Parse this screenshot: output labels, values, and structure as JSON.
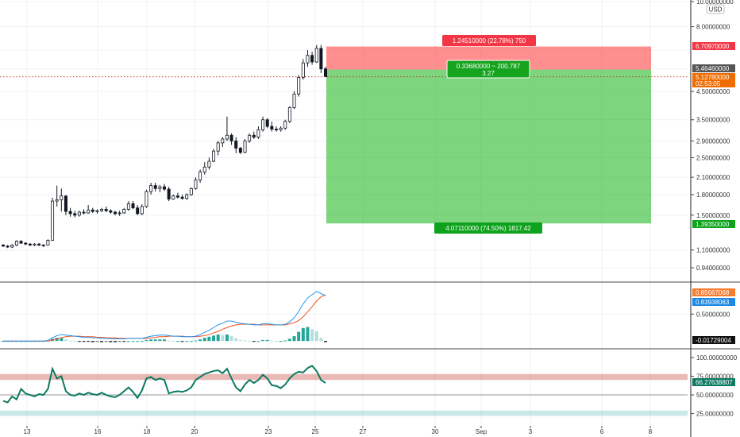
{
  "currency_label": "USD",
  "chart_data": {
    "type": "candlestick",
    "x_tick_labels": [
      "13",
      "16",
      "18",
      "20",
      "23",
      "25",
      "27",
      "30",
      "Sep",
      "3",
      "6",
      "8"
    ],
    "main": {
      "y_tick_labels": [
        "10.00000000",
        "8.00000000",
        "4.50000000",
        "3.50000000",
        "2.90000000",
        "2.50000000",
        "2.10000000",
        "1.80000000",
        "1.50000000",
        "1.10000000",
        "0.94000000"
      ],
      "candles": [
        [
          1.15,
          1.16,
          1.13,
          1.14
        ],
        [
          1.14,
          1.15,
          1.12,
          1.13
        ],
        [
          1.13,
          1.16,
          1.12,
          1.15
        ],
        [
          1.15,
          1.2,
          1.14,
          1.19
        ],
        [
          1.19,
          1.2,
          1.16,
          1.17
        ],
        [
          1.17,
          1.18,
          1.15,
          1.16
        ],
        [
          1.16,
          1.17,
          1.14,
          1.15
        ],
        [
          1.15,
          1.17,
          1.14,
          1.16
        ],
        [
          1.16,
          1.17,
          1.14,
          1.15
        ],
        [
          1.15,
          1.16,
          1.13,
          1.15
        ],
        [
          1.15,
          1.21,
          1.15,
          1.2
        ],
        [
          1.2,
          1.75,
          1.2,
          1.7
        ],
        [
          1.7,
          1.95,
          1.62,
          1.72
        ],
        [
          1.72,
          1.9,
          1.55,
          1.78
        ],
        [
          1.78,
          1.79,
          1.5,
          1.55
        ],
        [
          1.55,
          1.6,
          1.48,
          1.52
        ],
        [
          1.52,
          1.56,
          1.47,
          1.5
        ],
        [
          1.5,
          1.56,
          1.48,
          1.54
        ],
        [
          1.54,
          1.58,
          1.51,
          1.53
        ],
        [
          1.53,
          1.64,
          1.52,
          1.57
        ],
        [
          1.57,
          1.6,
          1.53,
          1.55
        ],
        [
          1.55,
          1.58,
          1.52,
          1.56
        ],
        [
          1.56,
          1.6,
          1.54,
          1.58
        ],
        [
          1.58,
          1.62,
          1.54,
          1.56
        ],
        [
          1.56,
          1.58,
          1.52,
          1.54
        ],
        [
          1.54,
          1.56,
          1.5,
          1.52
        ],
        [
          1.52,
          1.56,
          1.49,
          1.53
        ],
        [
          1.53,
          1.6,
          1.52,
          1.58
        ],
        [
          1.58,
          1.7,
          1.56,
          1.66
        ],
        [
          1.66,
          1.7,
          1.58,
          1.6
        ],
        [
          1.6,
          1.64,
          1.5,
          1.52
        ],
        [
          1.52,
          1.65,
          1.5,
          1.62
        ],
        [
          1.62,
          1.88,
          1.6,
          1.85
        ],
        [
          1.85,
          2.0,
          1.8,
          1.95
        ],
        [
          1.95,
          2.0,
          1.85,
          1.9
        ],
        [
          1.9,
          1.96,
          1.84,
          1.93
        ],
        [
          1.93,
          1.98,
          1.86,
          1.89
        ],
        [
          1.89,
          1.93,
          1.7,
          1.73
        ],
        [
          1.73,
          1.8,
          1.72,
          1.78
        ],
        [
          1.78,
          1.83,
          1.74,
          1.76
        ],
        [
          1.76,
          1.8,
          1.72,
          1.74
        ],
        [
          1.74,
          1.82,
          1.72,
          1.8
        ],
        [
          1.8,
          1.92,
          1.78,
          1.9
        ],
        [
          1.9,
          2.1,
          1.88,
          2.05
        ],
        [
          2.05,
          2.25,
          2.0,
          2.2
        ],
        [
          2.2,
          2.4,
          2.15,
          2.3
        ],
        [
          2.3,
          2.5,
          2.25,
          2.42
        ],
        [
          2.42,
          2.7,
          2.4,
          2.65
        ],
        [
          2.65,
          2.9,
          2.55,
          2.85
        ],
        [
          2.85,
          3.0,
          2.75,
          2.95
        ],
        [
          2.95,
          3.6,
          2.9,
          3.05
        ],
        [
          3.05,
          3.1,
          2.8,
          2.9
        ],
        [
          2.9,
          3.0,
          2.6,
          2.72
        ],
        [
          2.72,
          2.75,
          2.58,
          2.62
        ],
        [
          2.62,
          2.95,
          2.6,
          2.9
        ],
        [
          2.9,
          3.1,
          2.85,
          3.05
        ],
        [
          3.05,
          3.15,
          2.95,
          3.0
        ],
        [
          3.0,
          3.3,
          2.95,
          3.2
        ],
        [
          3.2,
          3.6,
          3.15,
          3.5
        ],
        [
          3.5,
          3.55,
          3.25,
          3.3
        ],
        [
          3.3,
          3.45,
          3.15,
          3.22
        ],
        [
          3.22,
          3.3,
          3.15,
          3.2
        ],
        [
          3.2,
          3.3,
          3.15,
          3.25
        ],
        [
          3.25,
          3.5,
          3.2,
          3.45
        ],
        [
          3.45,
          3.95,
          3.4,
          3.9
        ],
        [
          3.9,
          4.5,
          3.85,
          4.4
        ],
        [
          4.4,
          5.2,
          4.3,
          5.1
        ],
        [
          5.1,
          6.0,
          5.0,
          5.8
        ],
        [
          5.8,
          6.5,
          5.6,
          6.2
        ],
        [
          6.2,
          6.4,
          5.7,
          5.85
        ],
        [
          5.85,
          6.8,
          5.8,
          6.6
        ],
        [
          6.6,
          6.8,
          5.3,
          5.5
        ],
        [
          5.5,
          5.6,
          5.13,
          5.13
        ]
      ],
      "position": {
        "entry": 5.4646,
        "stop": 6.7097,
        "target": 1.3935,
        "current": 5.1278,
        "stop_label": "1.24510000 (22.78%) 750",
        "target_label": "4.07110000 (74.50%) 1817.42",
        "center_line1": "0.33680000 ~ 200.787",
        "center_line2": "3.27"
      },
      "price_tags": [
        {
          "label": "6.70970000",
          "color": "#f23645",
          "price": 6.7097
        },
        {
          "label": "5.46460000",
          "color": "#555555",
          "price": 5.4646
        },
        {
          "label": "5.12780000",
          "color": "#ef6c00",
          "price": 5.1278
        },
        {
          "label": "02:53:05",
          "color": "#ef6c00",
          "price": 4.72
        },
        {
          "label": "1.39350000",
          "color": "#0ea31c",
          "price": 1.3935
        }
      ]
    },
    "macd": {
      "y_tick_labels": [
        "0.50000000"
      ],
      "tags": [
        {
          "label": "0.85667068",
          "color": "#f57c2e",
          "value": 0.85667068
        },
        {
          "label": "0.83938063",
          "color": "#1e88e5",
          "value": 0.83938063
        },
        {
          "label": "-0.01729004",
          "color": "#111111",
          "value": -0.01729004
        }
      ],
      "macd_line": [
        0.0,
        0.0,
        0.0,
        0.0,
        0.0,
        0.0,
        0.0,
        0.0,
        0.0,
        0.0,
        0.01,
        0.06,
        0.1,
        0.12,
        0.11,
        0.1,
        0.09,
        0.08,
        0.07,
        0.07,
        0.06,
        0.06,
        0.05,
        0.05,
        0.04,
        0.04,
        0.04,
        0.04,
        0.05,
        0.05,
        0.05,
        0.05,
        0.07,
        0.09,
        0.1,
        0.11,
        0.11,
        0.1,
        0.09,
        0.09,
        0.08,
        0.08,
        0.08,
        0.09,
        0.12,
        0.16,
        0.2,
        0.25,
        0.3,
        0.33,
        0.37,
        0.37,
        0.35,
        0.33,
        0.32,
        0.31,
        0.3,
        0.3,
        0.32,
        0.32,
        0.31,
        0.3,
        0.3,
        0.31,
        0.36,
        0.43,
        0.55,
        0.69,
        0.8,
        0.86,
        0.92,
        0.88,
        0.84
      ],
      "signal_line": [
        0.0,
        0.0,
        0.0,
        0.0,
        0.0,
        0.0,
        0.0,
        0.0,
        0.0,
        0.0,
        0.0,
        0.02,
        0.04,
        0.06,
        0.08,
        0.09,
        0.09,
        0.09,
        0.08,
        0.08,
        0.08,
        0.07,
        0.07,
        0.06,
        0.06,
        0.06,
        0.05,
        0.05,
        0.05,
        0.05,
        0.05,
        0.05,
        0.05,
        0.06,
        0.07,
        0.08,
        0.08,
        0.09,
        0.09,
        0.09,
        0.09,
        0.08,
        0.08,
        0.08,
        0.09,
        0.1,
        0.12,
        0.15,
        0.18,
        0.22,
        0.25,
        0.28,
        0.3,
        0.31,
        0.31,
        0.31,
        0.31,
        0.3,
        0.3,
        0.3,
        0.3,
        0.3,
        0.3,
        0.3,
        0.32,
        0.34,
        0.38,
        0.45,
        0.54,
        0.64,
        0.74,
        0.82,
        0.86
      ],
      "histogram": [
        0.0,
        0.0,
        0.0,
        0.0,
        0.0,
        0.0,
        0.0,
        0.0,
        0.0,
        0.0,
        0.01,
        0.04,
        0.06,
        0.06,
        0.03,
        0.01,
        0.0,
        -0.01,
        -0.01,
        -0.01,
        -0.02,
        -0.01,
        -0.02,
        -0.01,
        -0.02,
        -0.02,
        -0.01,
        -0.01,
        0.0,
        0.0,
        0.0,
        0.0,
        0.02,
        0.03,
        0.03,
        0.03,
        0.03,
        0.01,
        0.0,
        0.0,
        -0.01,
        0.0,
        0.0,
        0.01,
        0.03,
        0.06,
        0.08,
        0.1,
        0.12,
        0.11,
        0.12,
        0.09,
        0.05,
        0.02,
        0.01,
        0.0,
        -0.01,
        0.0,
        0.02,
        0.02,
        0.01,
        0.0,
        0.0,
        0.01,
        0.04,
        0.09,
        0.17,
        0.24,
        0.26,
        0.22,
        0.18,
        0.06,
        -0.02
      ]
    },
    "rsi": {
      "y_tick_labels": [
        "100.00000000",
        "75.00000000",
        "50.00000000",
        "25.00000000"
      ],
      "current_label": "66.27638807",
      "current": 66.27638807,
      "band_values": [
        70,
        78
      ],
      "line_value": 50,
      "lower_band_values": [
        22,
        29
      ],
      "values": [
        42,
        40,
        48,
        44,
        58,
        52,
        50,
        48,
        51,
        50,
        58,
        85,
        72,
        75,
        55,
        50,
        49,
        52,
        50,
        53,
        51,
        50,
        53,
        50,
        48,
        47,
        50,
        55,
        60,
        54,
        46,
        56,
        72,
        74,
        70,
        72,
        70,
        52,
        54,
        55,
        54,
        56,
        60,
        70,
        74,
        78,
        80,
        82,
        83,
        79,
        85,
        72,
        60,
        55,
        64,
        70,
        66,
        70,
        77,
        72,
        63,
        62,
        59,
        64,
        72,
        78,
        81,
        80,
        86,
        89,
        82,
        70,
        66
      ]
    }
  }
}
